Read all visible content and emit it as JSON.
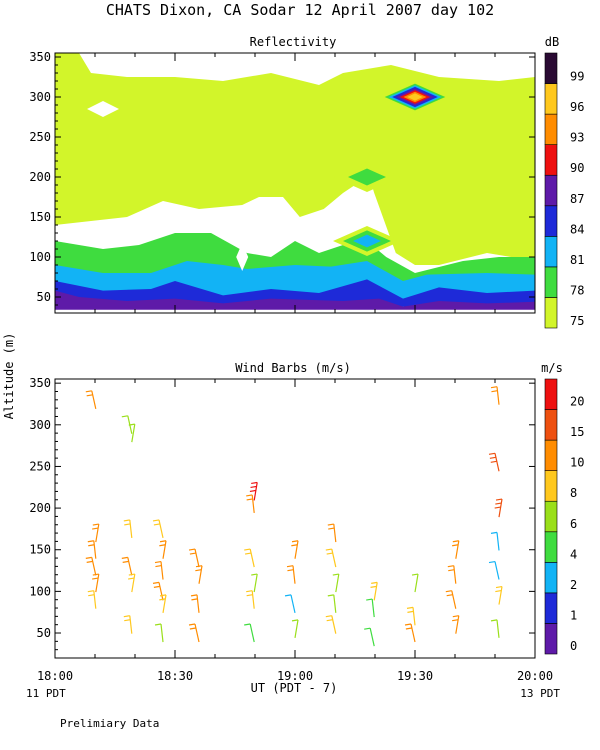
{
  "page": {
    "title": "CHATS Dixon, CA  Sodar  12 April 2007  day 102",
    "ylabel": "Altitude (m)",
    "xlabel": "UT  (PDT - 7)",
    "x_left_label": "11 PDT",
    "x_right_label": "13 PDT",
    "footnote": "Prelimiary Data"
  },
  "chart_data": [
    {
      "type": "heatmap",
      "title": "Reflectivity",
      "colorbar_unit": "dB",
      "x_ticks": [
        "18:00",
        "18:30",
        "19:00",
        "19:30",
        "20:00"
      ],
      "x_range_hours": [
        18.0,
        20.0
      ],
      "ylim": [
        30,
        355
      ],
      "y_ticks": [
        50,
        100,
        150,
        200,
        250,
        300,
        350
      ],
      "levels": [
        75,
        78,
        81,
        84,
        87,
        90,
        93,
        96,
        99
      ],
      "level_colors": [
        "#d2f52a",
        "#3fdc3f",
        "#12b3f5",
        "#1e2ad8",
        "#5e1aa8",
        "#ee1010",
        "#ff8c00",
        "#ffc81e",
        "#2a0a33"
      ],
      "grid": false,
      "regions": [
        {
          "level": 75,
          "shape": [
            [
              18.0,
              355
            ],
            [
              18.1,
              355
            ],
            [
              18.15,
              330
            ],
            [
              18.3,
              325
            ],
            [
              18.5,
              325
            ],
            [
              18.7,
              320
            ],
            [
              18.9,
              330
            ],
            [
              19.1,
              315
            ],
            [
              19.2,
              330
            ],
            [
              19.4,
              340
            ],
            [
              19.6,
              325
            ],
            [
              19.85,
              320
            ],
            [
              20.0,
              325
            ],
            [
              20.0,
              95
            ],
            [
              19.8,
              105
            ],
            [
              19.6,
              90
            ],
            [
              19.5,
              90
            ],
            [
              19.42,
              105
            ],
            [
              19.33,
              180
            ],
            [
              19.3,
              210
            ],
            [
              19.25,
              190
            ],
            [
              19.2,
              180
            ],
            [
              19.12,
              160
            ],
            [
              19.02,
              150
            ],
            [
              18.95,
              175
            ],
            [
              18.85,
              175
            ],
            [
              18.78,
              165
            ],
            [
              18.6,
              160
            ],
            [
              18.45,
              170
            ],
            [
              18.3,
              150
            ],
            [
              18.15,
              145
            ],
            [
              18.0,
              140
            ]
          ]
        },
        {
          "level": 78,
          "shape": [
            [
              18.0,
              120
            ],
            [
              18.2,
              110
            ],
            [
              18.35,
              115
            ],
            [
              18.5,
              130
            ],
            [
              18.65,
              130
            ],
            [
              18.8,
              105
            ],
            [
              18.9,
              100
            ],
            [
              19.0,
              120
            ],
            [
              19.1,
              105
            ],
            [
              19.2,
              115
            ],
            [
              19.3,
              120
            ],
            [
              19.38,
              100
            ],
            [
              19.5,
              80
            ],
            [
              19.7,
              95
            ],
            [
              19.85,
              100
            ],
            [
              20.0,
              100
            ],
            [
              20.0,
              50
            ],
            [
              18.0,
              50
            ]
          ]
        },
        {
          "level": 81,
          "shape": [
            [
              18.0,
              90
            ],
            [
              18.2,
              80
            ],
            [
              18.4,
              80
            ],
            [
              18.55,
              95
            ],
            [
              18.7,
              90
            ],
            [
              18.8,
              85
            ],
            [
              19.0,
              90
            ],
            [
              19.15,
              88
            ],
            [
              19.3,
              95
            ],
            [
              19.45,
              70
            ],
            [
              19.55,
              78
            ],
            [
              19.8,
              80
            ],
            [
              20.0,
              78
            ],
            [
              20.0,
              40
            ],
            [
              18.0,
              40
            ]
          ]
        },
        {
          "level": 84,
          "shape": [
            [
              18.0,
              70
            ],
            [
              18.2,
              58
            ],
            [
              18.4,
              60
            ],
            [
              18.5,
              70
            ],
            [
              18.7,
              52
            ],
            [
              18.9,
              60
            ],
            [
              19.1,
              55
            ],
            [
              19.3,
              72
            ],
            [
              19.45,
              48
            ],
            [
              19.6,
              62
            ],
            [
              19.8,
              55
            ],
            [
              20.0,
              58
            ],
            [
              20.0,
              38
            ],
            [
              18.0,
              38
            ]
          ]
        },
        {
          "level": 87,
          "shape": [
            [
              18.0,
              58
            ],
            [
              18.1,
              50
            ],
            [
              18.3,
              45
            ],
            [
              18.5,
              48
            ],
            [
              18.7,
              42
            ],
            [
              18.9,
              48
            ],
            [
              19.2,
              45
            ],
            [
              19.35,
              48
            ],
            [
              19.45,
              38
            ],
            [
              19.6,
              45
            ],
            [
              19.8,
              42
            ],
            [
              20.0,
              44
            ],
            [
              20.0,
              34
            ],
            [
              18.0,
              34
            ]
          ]
        }
      ],
      "spots": [
        {
          "x": 19.5,
          "y": 300,
          "peak_level": 96
        },
        {
          "x": 19.3,
          "y": 120,
          "peak_level": 81
        },
        {
          "x": 19.3,
          "y": 200,
          "peak_level": 78
        }
      ]
    },
    {
      "type": "scatter",
      "title": "Wind Barbs (m/s)",
      "colorbar_unit": "m/s",
      "x_ticks": [
        "18:00",
        "18:30",
        "19:00",
        "19:30",
        "20:00"
      ],
      "x_range_hours": [
        18.0,
        20.0
      ],
      "ylim": [
        20,
        355
      ],
      "y_ticks": [
        50,
        100,
        150,
        200,
        250,
        300,
        350
      ],
      "speed_levels": [
        "0",
        "1",
        "2",
        "4",
        "6",
        "8",
        "10",
        "15",
        "20"
      ],
      "speed_colors": [
        "#5e1aa8",
        "#1e2ad8",
        "#12b3f5",
        "#3fdc3f",
        "#9adf1a",
        "#ffc81e",
        "#ff8c00",
        "#ee5010",
        "#ee1010"
      ],
      "barbs": [
        {
          "t": 18.17,
          "z": 330,
          "spd": 10
        },
        {
          "t": 18.17,
          "z": 170,
          "spd": 10
        },
        {
          "t": 18.17,
          "z": 150,
          "spd": 10
        },
        {
          "t": 18.17,
          "z": 130,
          "spd": 10
        },
        {
          "t": 18.17,
          "z": 110,
          "spd": 10
        },
        {
          "t": 18.17,
          "z": 90,
          "spd": 8
        },
        {
          "t": 18.32,
          "z": 300,
          "spd": 6
        },
        {
          "t": 18.32,
          "z": 290,
          "spd": 6
        },
        {
          "t": 18.32,
          "z": 175,
          "spd": 8
        },
        {
          "t": 18.32,
          "z": 130,
          "spd": 10
        },
        {
          "t": 18.32,
          "z": 110,
          "spd": 8
        },
        {
          "t": 18.32,
          "z": 60,
          "spd": 8
        },
        {
          "t": 18.45,
          "z": 175,
          "spd": 8
        },
        {
          "t": 18.45,
          "z": 150,
          "spd": 10
        },
        {
          "t": 18.45,
          "z": 125,
          "spd": 10
        },
        {
          "t": 18.45,
          "z": 100,
          "spd": 10
        },
        {
          "t": 18.45,
          "z": 85,
          "spd": 8
        },
        {
          "t": 18.45,
          "z": 50,
          "spd": 6
        },
        {
          "t": 18.6,
          "z": 140,
          "spd": 10
        },
        {
          "t": 18.6,
          "z": 120,
          "spd": 10
        },
        {
          "t": 18.6,
          "z": 85,
          "spd": 10
        },
        {
          "t": 18.6,
          "z": 50,
          "spd": 10
        },
        {
          "t": 18.83,
          "z": 220,
          "spd": 20
        },
        {
          "t": 18.83,
          "z": 205,
          "spd": 10
        },
        {
          "t": 18.83,
          "z": 140,
          "spd": 8
        },
        {
          "t": 18.83,
          "z": 110,
          "spd": 6
        },
        {
          "t": 18.83,
          "z": 90,
          "spd": 8
        },
        {
          "t": 18.83,
          "z": 50,
          "spd": 4
        },
        {
          "t": 19.0,
          "z": 150,
          "spd": 10
        },
        {
          "t": 19.0,
          "z": 120,
          "spd": 10
        },
        {
          "t": 19.0,
          "z": 85,
          "spd": 2
        },
        {
          "t": 19.0,
          "z": 55,
          "spd": 6
        },
        {
          "t": 19.17,
          "z": 170,
          "spd": 10
        },
        {
          "t": 19.17,
          "z": 140,
          "spd": 8
        },
        {
          "t": 19.17,
          "z": 110,
          "spd": 6
        },
        {
          "t": 19.17,
          "z": 85,
          "spd": 6
        },
        {
          "t": 19.17,
          "z": 60,
          "spd": 8
        },
        {
          "t": 19.33,
          "z": 100,
          "spd": 8
        },
        {
          "t": 19.33,
          "z": 80,
          "spd": 4
        },
        {
          "t": 19.33,
          "z": 45,
          "spd": 4
        },
        {
          "t": 19.5,
          "z": 110,
          "spd": 6
        },
        {
          "t": 19.5,
          "z": 70,
          "spd": 8
        },
        {
          "t": 19.5,
          "z": 50,
          "spd": 10
        },
        {
          "t": 19.67,
          "z": 150,
          "spd": 10
        },
        {
          "t": 19.67,
          "z": 120,
          "spd": 10
        },
        {
          "t": 19.67,
          "z": 90,
          "spd": 10
        },
        {
          "t": 19.67,
          "z": 60,
          "spd": 10
        },
        {
          "t": 19.85,
          "z": 335,
          "spd": 10
        },
        {
          "t": 19.85,
          "z": 255,
          "spd": 15
        },
        {
          "t": 19.85,
          "z": 200,
          "spd": 15
        },
        {
          "t": 19.85,
          "z": 160,
          "spd": 2
        },
        {
          "t": 19.85,
          "z": 125,
          "spd": 2
        },
        {
          "t": 19.85,
          "z": 95,
          "spd": 8
        },
        {
          "t": 19.85,
          "z": 55,
          "spd": 6
        }
      ]
    }
  ]
}
